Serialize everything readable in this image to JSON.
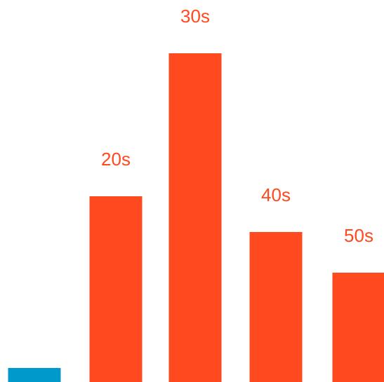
{
  "chart_data": {
    "type": "bar",
    "categories": [
      "",
      "20s",
      "30s",
      "40s",
      "50s"
    ],
    "values": [
      20,
      265,
      469,
      214,
      156
    ],
    "data_labels": [
      "",
      "20s",
      "30s",
      "40s",
      "50s"
    ],
    "bar_colors": [
      "#0099CC",
      "#FF4A1F",
      "#FF4A1F",
      "#FF4A1F",
      "#FF4A1F"
    ],
    "label_color": "#FF4A1F",
    "ylim": [
      0,
      545
    ],
    "grid": false,
    "legend": "none",
    "title": "",
    "xlabel": "",
    "ylabel": ""
  }
}
